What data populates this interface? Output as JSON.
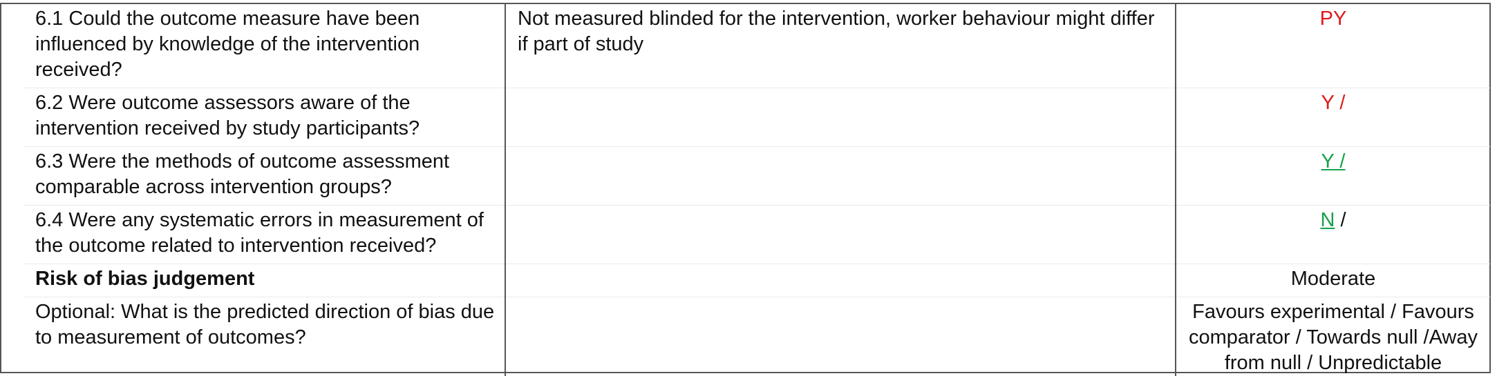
{
  "rows": [
    {
      "question": "6.1 Could the outcome measure have been influenced by knowledge of the intervention received?",
      "support": "Not measured blinded for the intervention, worker behaviour might differ if part of study",
      "answer": {
        "main": "PY",
        "suffix": ""
      },
      "answer_color": "#e0191a"
    },
    {
      "question": "6.2 Were outcome assessors aware of the intervention received by study participants?",
      "support": "",
      "answer": {
        "main": "Y /",
        "suffix": ""
      },
      "answer_color": "#e0191a"
    },
    {
      "question": "6.3 Were the methods of outcome assessment comparable across intervention groups?",
      "support": "",
      "answer": {
        "main": "Y /",
        "suffix": ""
      },
      "answer_color": "#19a04b"
    },
    {
      "question": "6.4 Were any systematic errors in measurement of the outcome related to intervention received?",
      "support": "",
      "answer": {
        "main": "N",
        "suffix": " /"
      },
      "answer_color": "#19a04b"
    },
    {
      "question": "Risk of bias judgement",
      "support": "",
      "answer": {
        "main": "Moderate",
        "suffix": ""
      }
    },
    {
      "question": "Optional: What is the predicted direction of bias due to measurement of outcomes?",
      "support": "",
      "answer": {
        "main": "Favours experimental / Favours comparator / Towards null /Away from null / Unpredictable",
        "suffix": ""
      }
    }
  ]
}
